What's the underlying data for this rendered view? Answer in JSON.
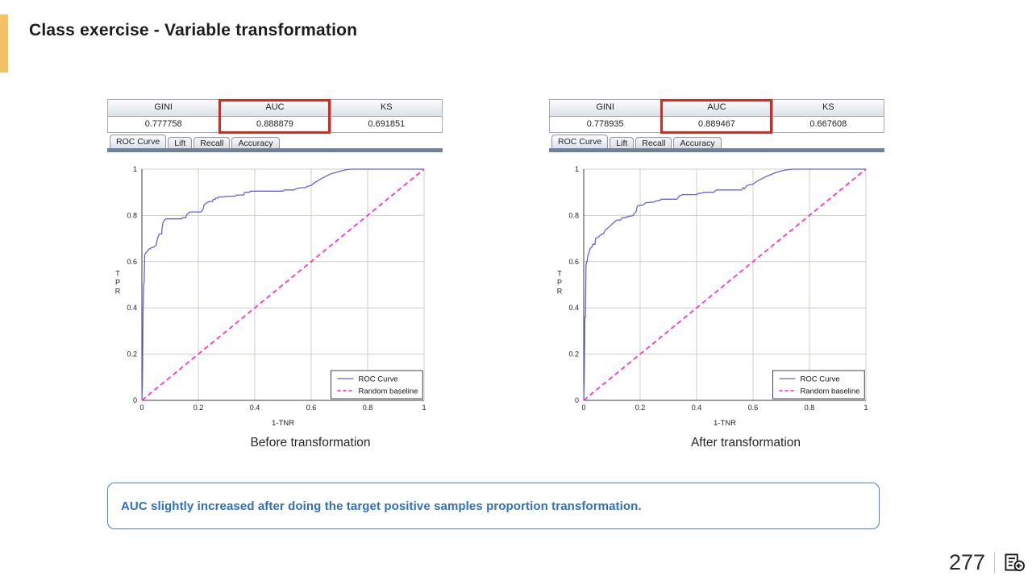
{
  "slide": {
    "title": "Class exercise - Variable transformation",
    "page_number": "277",
    "note": "AUC slightly increased after doing the target positive samples proportion transformation.",
    "accent_color": "#F2C163",
    "highlight_color": "#e2251a",
    "note_border_color": "#4e82c8",
    "note_text_color": "#2e6fbe",
    "footer_icon": "document-return-icon"
  },
  "panels": [
    {
      "id": "before",
      "caption": "Before transformation",
      "metrics": {
        "headers": [
          "GINI",
          "AUC",
          "KS"
        ],
        "values": [
          "0.777758",
          "0.888879",
          "0.691851"
        ],
        "highlighted_column": "AUC"
      },
      "tabs": [
        {
          "label": "ROC Curve",
          "active": true
        },
        {
          "label": "Lift",
          "active": false
        },
        {
          "label": "Recall",
          "active": false
        },
        {
          "label": "Accuracy",
          "active": false
        }
      ]
    },
    {
      "id": "after",
      "caption": "After transformation",
      "metrics": {
        "headers": [
          "GINI",
          "AUC",
          "KS"
        ],
        "values": [
          "0.778935",
          "0.889467",
          "0.667608"
        ],
        "highlighted_column": "AUC"
      },
      "tabs": [
        {
          "label": "ROC Curve",
          "active": true
        },
        {
          "label": "Lift",
          "active": false
        },
        {
          "label": "Recall",
          "active": false
        },
        {
          "label": "Accuracy",
          "active": false
        }
      ]
    }
  ],
  "chart_data": [
    {
      "type": "line",
      "title": "ROC curve before transformation",
      "xlabel": "1-TNR",
      "ylabel": "TPR",
      "xlim": [
        0,
        1
      ],
      "ylim": [
        0,
        1
      ],
      "xticks": [
        0,
        0.2,
        0.4,
        0.6,
        0.8,
        1
      ],
      "yticks": [
        0,
        0.2,
        0.4,
        0.6,
        0.8,
        1
      ],
      "grid": true,
      "legend_position": "lower right",
      "legend": [
        "ROC Curve",
        "Random baseline"
      ],
      "series": [
        {
          "name": "ROC Curve",
          "color": "#6262e0",
          "dash": false,
          "width": 1.3,
          "points": [
            [
              0,
              0
            ],
            [
              0.002,
              0.08
            ],
            [
              0.004,
              0.38
            ],
            [
              0.006,
              0.5
            ],
            [
              0.008,
              0.51
            ],
            [
              0.01,
              0.63
            ],
            [
              0.015,
              0.64
            ],
            [
              0.02,
              0.645
            ],
            [
              0.025,
              0.655
            ],
            [
              0.03,
              0.655
            ],
            [
              0.032,
              0.66
            ],
            [
              0.04,
              0.662
            ],
            [
              0.045,
              0.665
            ],
            [
              0.05,
              0.67
            ],
            [
              0.052,
              0.68
            ],
            [
              0.055,
              0.7
            ],
            [
              0.06,
              0.715
            ],
            [
              0.062,
              0.72
            ],
            [
              0.07,
              0.72
            ],
            [
              0.072,
              0.75
            ],
            [
              0.075,
              0.77
            ],
            [
              0.08,
              0.78
            ],
            [
              0.085,
              0.785
            ],
            [
              0.14,
              0.785
            ],
            [
              0.145,
              0.79
            ],
            [
              0.155,
              0.79
            ],
            [
              0.16,
              0.805
            ],
            [
              0.165,
              0.81
            ],
            [
              0.17,
              0.815
            ],
            [
              0.21,
              0.815
            ],
            [
              0.213,
              0.82
            ],
            [
              0.218,
              0.83
            ],
            [
              0.22,
              0.845
            ],
            [
              0.225,
              0.85
            ],
            [
              0.23,
              0.855
            ],
            [
              0.24,
              0.86
            ],
            [
              0.25,
              0.86
            ],
            [
              0.252,
              0.868
            ],
            [
              0.26,
              0.87
            ],
            [
              0.262,
              0.875
            ],
            [
              0.27,
              0.875
            ],
            [
              0.272,
              0.88
            ],
            [
              0.29,
              0.88
            ],
            [
              0.3,
              0.883
            ],
            [
              0.33,
              0.883
            ],
            [
              0.335,
              0.888
            ],
            [
              0.36,
              0.888
            ],
            [
              0.365,
              0.9
            ],
            [
              0.38,
              0.9
            ],
            [
              0.385,
              0.905
            ],
            [
              0.5,
              0.905
            ],
            [
              0.505,
              0.91
            ],
            [
              0.54,
              0.91
            ],
            [
              0.545,
              0.915
            ],
            [
              0.55,
              0.915
            ],
            [
              0.56,
              0.92
            ],
            [
              0.58,
              0.92
            ],
            [
              0.585,
              0.925
            ],
            [
              0.6,
              0.93
            ],
            [
              0.61,
              0.94
            ],
            [
              0.63,
              0.955
            ],
            [
              0.65,
              0.968
            ],
            [
              0.67,
              0.98
            ],
            [
              0.7,
              0.99
            ],
            [
              0.72,
              0.997
            ],
            [
              0.74,
              1.0
            ],
            [
              1.0,
              1.0
            ]
          ]
        },
        {
          "name": "Random baseline",
          "color": "#ff33cc",
          "dash": true,
          "width": 1.8,
          "points": [
            [
              0,
              0
            ],
            [
              1,
              1
            ]
          ]
        }
      ]
    },
    {
      "type": "line",
      "title": "ROC curve after transformation",
      "xlabel": "1-TNR",
      "ylabel": "TPR",
      "xlim": [
        0,
        1
      ],
      "ylim": [
        0,
        1
      ],
      "xticks": [
        0,
        0.2,
        0.4,
        0.6,
        0.8,
        1
      ],
      "yticks": [
        0,
        0.2,
        0.4,
        0.6,
        0.8,
        1
      ],
      "grid": true,
      "legend_position": "lower right",
      "legend": [
        "ROC Curve",
        "Random baseline"
      ],
      "series": [
        {
          "name": "ROC Curve",
          "color": "#6262e0",
          "dash": false,
          "width": 1.3,
          "points": [
            [
              0,
              0
            ],
            [
              0.002,
              0.1
            ],
            [
              0.004,
              0.36
            ],
            [
              0.006,
              0.36
            ],
            [
              0.008,
              0.58
            ],
            [
              0.01,
              0.6
            ],
            [
              0.012,
              0.6
            ],
            [
              0.014,
              0.62
            ],
            [
              0.016,
              0.63
            ],
            [
              0.02,
              0.645
            ],
            [
              0.022,
              0.655
            ],
            [
              0.025,
              0.66
            ],
            [
              0.03,
              0.665
            ],
            [
              0.032,
              0.675
            ],
            [
              0.04,
              0.675
            ],
            [
              0.042,
              0.7
            ],
            [
              0.05,
              0.705
            ],
            [
              0.055,
              0.71
            ],
            [
              0.06,
              0.715
            ],
            [
              0.065,
              0.72
            ],
            [
              0.07,
              0.72
            ],
            [
              0.075,
              0.735
            ],
            [
              0.08,
              0.74
            ],
            [
              0.09,
              0.75
            ],
            [
              0.1,
              0.762
            ],
            [
              0.11,
              0.772
            ],
            [
              0.115,
              0.778
            ],
            [
              0.12,
              0.78
            ],
            [
              0.13,
              0.78
            ],
            [
              0.135,
              0.788
            ],
            [
              0.14,
              0.79
            ],
            [
              0.15,
              0.79
            ],
            [
              0.155,
              0.795
            ],
            [
              0.17,
              0.798
            ],
            [
              0.175,
              0.8
            ],
            [
              0.18,
              0.81
            ],
            [
              0.185,
              0.815
            ],
            [
              0.19,
              0.84
            ],
            [
              0.195,
              0.843
            ],
            [
              0.21,
              0.845
            ],
            [
              0.215,
              0.85
            ],
            [
              0.22,
              0.855
            ],
            [
              0.25,
              0.858
            ],
            [
              0.255,
              0.862
            ],
            [
              0.27,
              0.865
            ],
            [
              0.275,
              0.87
            ],
            [
              0.33,
              0.87
            ],
            [
              0.335,
              0.878
            ],
            [
              0.34,
              0.885
            ],
            [
              0.35,
              0.89
            ],
            [
              0.4,
              0.89
            ],
            [
              0.405,
              0.895
            ],
            [
              0.42,
              0.897
            ],
            [
              0.43,
              0.9
            ],
            [
              0.46,
              0.9
            ],
            [
              0.465,
              0.905
            ],
            [
              0.47,
              0.91
            ],
            [
              0.56,
              0.91
            ],
            [
              0.565,
              0.92
            ],
            [
              0.57,
              0.915
            ],
            [
              0.575,
              0.925
            ],
            [
              0.58,
              0.93
            ],
            [
              0.6,
              0.935
            ],
            [
              0.61,
              0.945
            ],
            [
              0.63,
              0.958
            ],
            [
              0.65,
              0.97
            ],
            [
              0.68,
              0.985
            ],
            [
              0.71,
              0.995
            ],
            [
              0.74,
              1.0
            ],
            [
              1.0,
              1.0
            ]
          ]
        },
        {
          "name": "Random baseline",
          "color": "#ff33cc",
          "dash": true,
          "width": 1.8,
          "points": [
            [
              0,
              0
            ],
            [
              1,
              1
            ]
          ]
        }
      ]
    }
  ]
}
